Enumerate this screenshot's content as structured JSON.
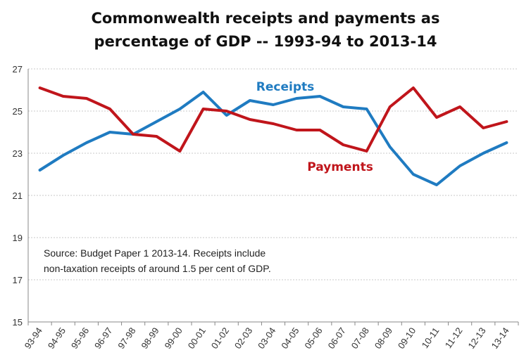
{
  "chart_data": {
    "type": "line",
    "title_lines": [
      "Commonwealth receipts and payments as",
      "percentage of GDP -- 1993-94 to 2013-14"
    ],
    "xlabel": "",
    "ylabel": "",
    "ylim": [
      15,
      27
    ],
    "yticks": [
      "15",
      "17",
      "19",
      "21",
      "23",
      "25",
      "27"
    ],
    "grid": "horizontal",
    "categories": [
      "93-94",
      "94-95",
      "95-96",
      "96-97",
      "97-98",
      "98-99",
      "99-00",
      "00-01",
      "01-02",
      "02-03",
      "03-04",
      "04-05",
      "05-06",
      "06-07",
      "07-08",
      "08-09",
      "09-10",
      "10-11",
      "11-12",
      "12-13",
      "13-14"
    ],
    "series": [
      {
        "name": "Receipts",
        "color": "#1f7bc1",
        "values": [
          22.2,
          22.9,
          23.5,
          24.0,
          23.9,
          24.5,
          25.1,
          25.9,
          24.8,
          25.5,
          25.3,
          25.6,
          25.7,
          25.2,
          25.1,
          23.3,
          22.0,
          21.5,
          22.4,
          23.0,
          23.5
        ]
      },
      {
        "name": "Payments",
        "color": "#c0151b",
        "values": [
          26.1,
          25.7,
          25.6,
          25.1,
          23.9,
          23.8,
          23.1,
          25.1,
          25.0,
          24.6,
          24.4,
          24.1,
          24.1,
          23.4,
          23.1,
          25.2,
          26.1,
          24.7,
          25.2,
          24.2,
          24.5
        ]
      }
    ],
    "note_lines": [
      "Source:  Budget Paper 1 2013-14.  Receipts include",
      "non-taxation receipts of around 1.5 per cent of GDP."
    ]
  }
}
